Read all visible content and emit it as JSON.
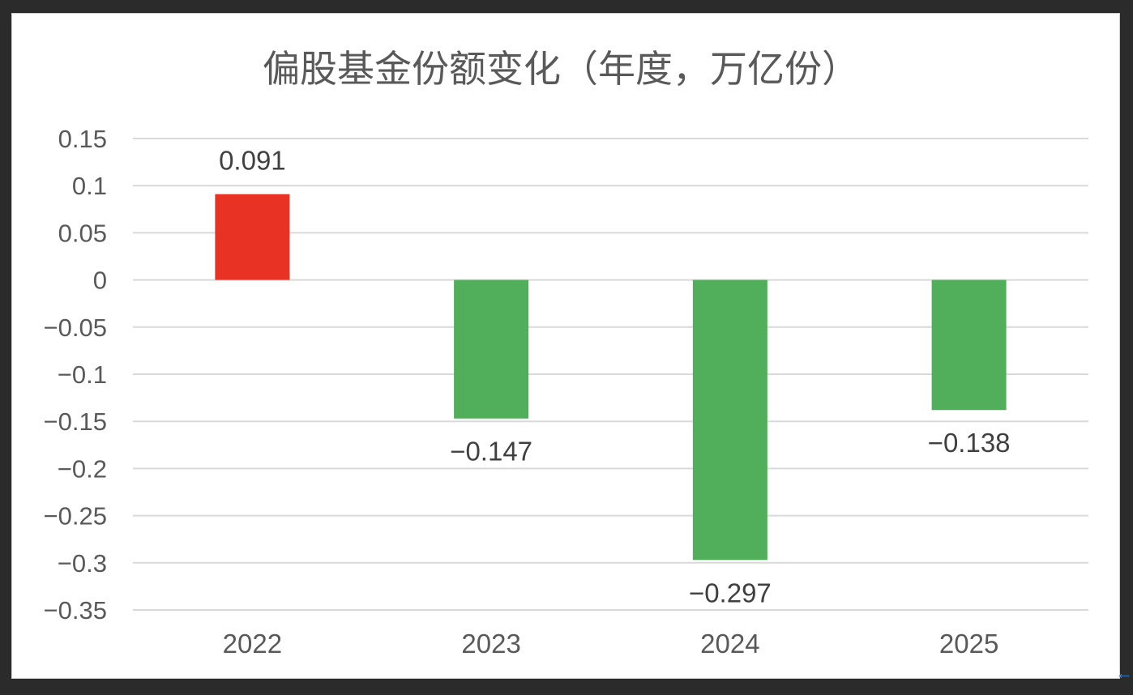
{
  "chart_data": {
    "type": "bar",
    "title": "偏股基金份额变化（年度，万亿份）",
    "categories": [
      "2022",
      "2023",
      "2024",
      "2025"
    ],
    "values": [
      0.091,
      -0.147,
      -0.297,
      -0.138
    ],
    "value_labels": [
      "0.091",
      "−0.147",
      "−0.297",
      "−0.138"
    ],
    "ylim": [
      -0.35,
      0.15
    ],
    "yticks": [
      0.15,
      0.1,
      0.05,
      0,
      -0.05,
      -0.1,
      -0.15,
      -0.2,
      -0.25,
      -0.3,
      -0.35
    ],
    "ytick_labels": [
      "0.15",
      "0.1",
      "0.05",
      "0",
      "−0.05",
      "−0.1",
      "−0.15",
      "−0.2",
      "−0.25",
      "−0.3",
      "−0.35"
    ],
    "grid": true,
    "legend": "none",
    "colors": {
      "positive": "#e83324",
      "negative": "#51ae5b"
    }
  }
}
